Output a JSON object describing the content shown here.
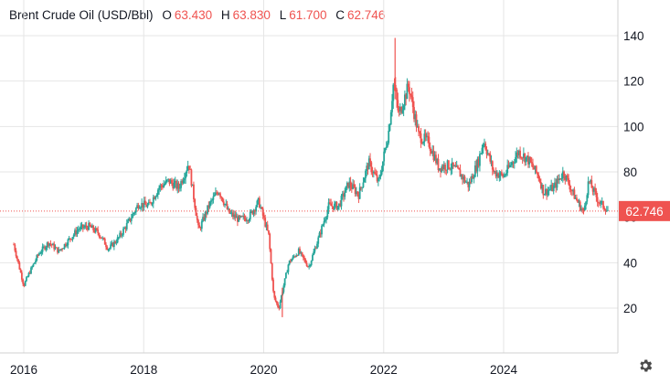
{
  "legend": {
    "title": "Brent Crude Oil (USD/Bbl)",
    "o_label": "O",
    "o_value": "63.430",
    "h_label": "H",
    "h_value": "63.830",
    "l_label": "L",
    "l_value": "61.700",
    "c_label": "C",
    "c_value": "62.746"
  },
  "colors": {
    "up": "#26a69a",
    "down": "#ef5350",
    "grid": "#e6e6e6",
    "axis_text": "#131722",
    "last_price": "#ef5350"
  },
  "settings_icon": "gear-icon",
  "chart_data": {
    "type": "candlestick",
    "title": "Brent Crude Oil (USD/Bbl)",
    "x_ticks": [
      "2016",
      "2018",
      "2020",
      "2022",
      "2024"
    ],
    "y_ticks": [
      20,
      40,
      60,
      80,
      100,
      120,
      140
    ],
    "ylim": [
      10,
      150
    ],
    "xlim": [
      "2015-11",
      "2025-12"
    ],
    "grid": true,
    "last_price": {
      "value": 62.746,
      "label": "62.746"
    },
    "ohlc_latest": {
      "open": 63.43,
      "high": 63.83,
      "low": 61.7,
      "close": 62.746
    },
    "price_path": [
      [
        "2015-11",
        48
      ],
      [
        "2016-01",
        30
      ],
      [
        "2016-02",
        35
      ],
      [
        "2016-04",
        44
      ],
      [
        "2016-06",
        49
      ],
      [
        "2016-08",
        45
      ],
      [
        "2016-10",
        50
      ],
      [
        "2016-12",
        55
      ],
      [
        "2017-02",
        56
      ],
      [
        "2017-04",
        53
      ],
      [
        "2017-06",
        46
      ],
      [
        "2017-08",
        51
      ],
      [
        "2017-10",
        58
      ],
      [
        "2017-12",
        66
      ],
      [
        "2018-02",
        65
      ],
      [
        "2018-04",
        73
      ],
      [
        "2018-06",
        76
      ],
      [
        "2018-08",
        73
      ],
      [
        "2018-10",
        84
      ],
      [
        "2018-12",
        54
      ],
      [
        "2019-02",
        65
      ],
      [
        "2019-04",
        72
      ],
      [
        "2019-06",
        62
      ],
      [
        "2019-08",
        59
      ],
      [
        "2019-10",
        60
      ],
      [
        "2019-12",
        67
      ],
      [
        "2020-02",
        52
      ],
      [
        "2020-03",
        25
      ],
      [
        "2020-04",
        20
      ],
      [
        "2020-06",
        40
      ],
      [
        "2020-08",
        45
      ],
      [
        "2020-10",
        38
      ],
      [
        "2020-12",
        51
      ],
      [
        "2021-02",
        65
      ],
      [
        "2021-04",
        65
      ],
      [
        "2021-06",
        75
      ],
      [
        "2021-08",
        70
      ],
      [
        "2021-10",
        84
      ],
      [
        "2021-12",
        75
      ],
      [
        "2022-02",
        98
      ],
      [
        "2022-03",
        120
      ],
      [
        "2022-04",
        105
      ],
      [
        "2022-06",
        118
      ],
      [
        "2022-08",
        96
      ],
      [
        "2022-10",
        93
      ],
      [
        "2022-12",
        82
      ],
      [
        "2023-02",
        83
      ],
      [
        "2023-04",
        80
      ],
      [
        "2023-06",
        74
      ],
      [
        "2023-08",
        85
      ],
      [
        "2023-09",
        94
      ],
      [
        "2023-11",
        80
      ],
      [
        "2024-01",
        78
      ],
      [
        "2024-04",
        89
      ],
      [
        "2024-06",
        85
      ],
      [
        "2024-08",
        78
      ],
      [
        "2024-09",
        71
      ],
      [
        "2024-11",
        73
      ],
      [
        "2025-01",
        80
      ],
      [
        "2025-03",
        70
      ],
      [
        "2025-05",
        62
      ],
      [
        "2025-06",
        76
      ],
      [
        "2025-08",
        67
      ],
      [
        "2025-10",
        62.7
      ]
    ]
  }
}
